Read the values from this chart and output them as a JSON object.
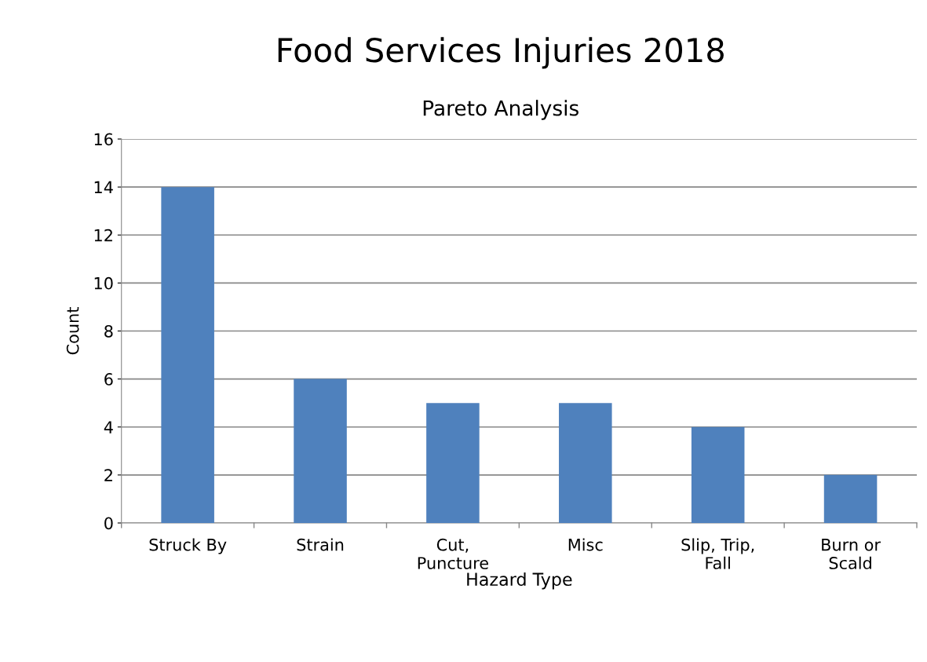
{
  "chart_data": {
    "type": "bar",
    "title": "Food Services Injuries 2018",
    "subtitle": "Pareto Analysis",
    "xlabel": "Hazard Type",
    "ylabel": "Count",
    "categories": [
      "Struck By",
      "Strain",
      "Cut,\nPuncture",
      "Misc",
      "Slip, Trip,\nFall",
      "Burn or\nScald"
    ],
    "values": [
      14,
      6,
      5,
      5,
      4,
      2
    ],
    "color": "#4f81bd",
    "ylim": [
      0,
      16
    ],
    "yticks": [
      0,
      2,
      4,
      6,
      8,
      10,
      12,
      14,
      16
    ],
    "grid": "y",
    "legend": false
  }
}
